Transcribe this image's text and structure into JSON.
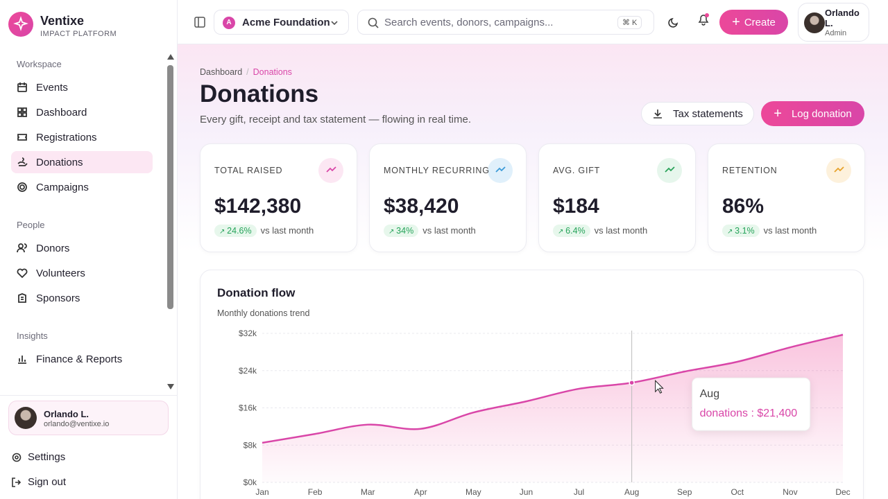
{
  "sidebar": {
    "brand": {
      "name": "Ventixe",
      "tagline": "IMPACT PLATFORM"
    },
    "sections": [
      {
        "title": "Workspace",
        "items": [
          "Events",
          "Dashboard",
          "Registrations",
          "Donations",
          "Campaigns"
        ]
      },
      {
        "title": "People",
        "items": [
          "Donors",
          "Volunteers",
          "Sponsors"
        ]
      },
      {
        "title": "Insights",
        "items": [
          "Finance & Reports"
        ]
      }
    ],
    "user": {
      "name": "Orlando L.",
      "email": "orlando@ventixe.io"
    },
    "footer": [
      "Settings",
      "Sign out"
    ]
  },
  "topbar": {
    "org_initial": "A",
    "org": "Acme Foundation",
    "search_placeholder": "Search events, donors, campaigns...",
    "shortcut": "⌘ K",
    "create": "Create",
    "user": {
      "name": "Orlando L.",
      "role": "Admin"
    }
  },
  "page": {
    "breadcrumb": [
      "Dashboard",
      "Donations"
    ],
    "title": "Donations",
    "subtitle": "Every gift, receipt and tax statement — flowing in real time.",
    "actions": [
      "Tax statements",
      "Log donation"
    ],
    "stats": [
      {
        "label": "TOTAL RAISED",
        "value": "$142,380",
        "change": "24.6%",
        "note": "vs last month"
      },
      {
        "label": "MONTHLY RECURRING",
        "value": "$38,420",
        "change": "34%",
        "note": "vs last month"
      },
      {
        "label": "AVG. GIFT",
        "value": "$184",
        "change": "6.4%",
        "note": "vs last month"
      },
      {
        "label": "RETENTION",
        "value": "86%",
        "change": "3.1%",
        "note": "vs last month"
      }
    ]
  },
  "chart_data": {
    "type": "line",
    "title": "Donation flow",
    "subtitle": "Monthly donations trend",
    "categories": [
      "Jan",
      "Feb",
      "Mar",
      "Apr",
      "May",
      "Jun",
      "Jul",
      "Aug",
      "Sep",
      "Oct",
      "Nov",
      "Dec"
    ],
    "series": [
      {
        "name": "donations",
        "color": "#d946a8",
        "values": [
          8500,
          10400,
          12400,
          11500,
          15000,
          17400,
          20100,
          21400,
          23800,
          25900,
          29000,
          31700
        ]
      }
    ],
    "ylim": [
      0,
      32000
    ],
    "yticks": [
      {
        "value": 0,
        "label": "$0k"
      },
      {
        "value": 8000,
        "label": "$8k"
      },
      {
        "value": 16000,
        "label": "$16k"
      },
      {
        "value": 24000,
        "label": "$24k"
      },
      {
        "value": 32000,
        "label": "$32k"
      }
    ],
    "grid": true,
    "tooltip": {
      "title": "Aug",
      "text": "donations : $21,400"
    }
  }
}
